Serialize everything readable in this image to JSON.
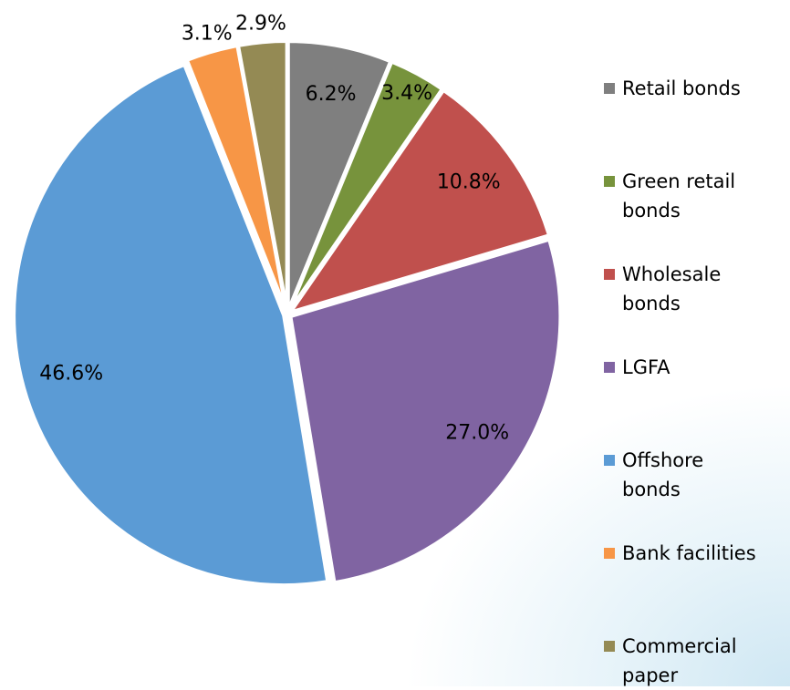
{
  "chart_data": {
    "type": "pie",
    "categories": [
      "Retail bonds",
      "Green retail bonds",
      "Wholesale bonds",
      "LGFA",
      "Offshore bonds",
      "Bank facilities",
      "Commercial paper"
    ],
    "values": [
      6.2,
      3.4,
      10.8,
      27.0,
      46.6,
      3.1,
      2.9
    ],
    "value_labels": [
      "6.2%",
      "3.4%",
      "10.8%",
      "27.0%",
      "46.6%",
      "3.1%",
      "2.9%"
    ],
    "colors": [
      "#7f7f7f",
      "#77933c",
      "#c0504d",
      "#8064a2",
      "#5b9bd5",
      "#f79646",
      "#948a54"
    ],
    "legend": "right"
  }
}
